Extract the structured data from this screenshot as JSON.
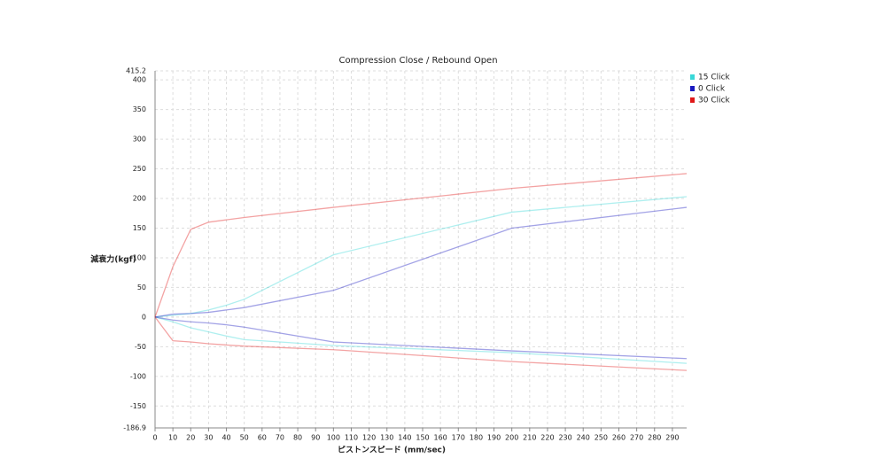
{
  "chart_data": {
    "type": "line",
    "title": "Compression Close / Rebound Open",
    "x_label": "ピストンスピード (mm/sec)",
    "y_label": "減衰力(kgf)",
    "x": [
      0,
      10,
      20,
      30,
      40,
      50,
      100,
      200,
      298
    ],
    "series": [
      {
        "name": "15 Click",
        "color": "#38d8d8",
        "values": [
          0,
          3,
          6,
          12,
          20,
          30,
          105,
          177,
          203
        ],
        "rebound_values": [
          0,
          -8,
          -18,
          -25,
          -32,
          -38,
          -48,
          -60,
          -78
        ]
      },
      {
        "name": "0 Click",
        "color": "#1a1ac0",
        "values": [
          0,
          5,
          6,
          8,
          12,
          16,
          45,
          150,
          185
        ],
        "rebound_values": [
          0,
          -5,
          -8,
          -10,
          -13,
          -17,
          -42,
          -57,
          -70
        ]
      },
      {
        "name": "30 Click",
        "color": "#e01818",
        "values": [
          0,
          85,
          148,
          160,
          164,
          168,
          185,
          217,
          242
        ],
        "rebound_values": [
          0,
          -40,
          -42,
          -45,
          -47,
          -49,
          -55,
          -75,
          -90
        ]
      }
    ],
    "xlim": [
      0,
      298
    ],
    "xticks": [
      0,
      10,
      20,
      30,
      40,
      50,
      60,
      70,
      80,
      90,
      100,
      110,
      120,
      130,
      140,
      150,
      160,
      170,
      180,
      190,
      200,
      210,
      220,
      230,
      240,
      250,
      260,
      270,
      280,
      290
    ],
    "ylim": [
      -186.9,
      415.2
    ],
    "yticks": [
      -186.9,
      -150,
      -100,
      -50,
      0,
      50,
      100,
      150,
      200,
      250,
      300,
      350,
      400,
      415.2
    ],
    "grid": true,
    "legend": "top-right"
  }
}
